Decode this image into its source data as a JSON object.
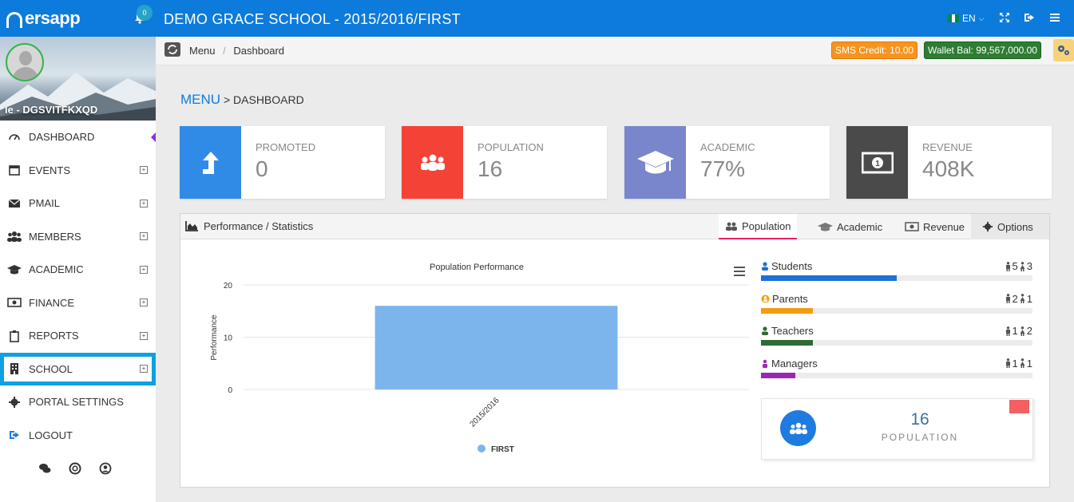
{
  "topbar": {
    "brand": "ersapp",
    "notification_count": "0",
    "title": "DEMO GRACE SCHOOL - 2015/2016/FIRST",
    "language": "EN"
  },
  "sidebar": {
    "profile_name": "le - DGSVITFKXQD",
    "items": [
      {
        "label": "DASHBOARD",
        "icon": "dashboard-icon"
      },
      {
        "label": "EVENTS",
        "icon": "calendar-icon"
      },
      {
        "label": "PMAIL",
        "icon": "mail-icon"
      },
      {
        "label": "MEMBERS",
        "icon": "users-icon"
      },
      {
        "label": "ACADEMIC",
        "icon": "graduation-cap-icon"
      },
      {
        "label": "FINANCE",
        "icon": "money-icon"
      },
      {
        "label": "REPORTS",
        "icon": "clipboard-icon"
      },
      {
        "label": "SCHOOL",
        "icon": "building-icon"
      },
      {
        "label": "PORTAL SETTINGS",
        "icon": "gear-icon"
      },
      {
        "label": "LOGOUT",
        "icon": "logout-icon"
      }
    ]
  },
  "breadcrumb": {
    "root": "Menu",
    "current": "Dashboard"
  },
  "badges": {
    "sms_credit": "SMS Credit: 10.00",
    "wallet": "Wallet Bal: 99,567,000.00"
  },
  "page_heading": {
    "menu": "MENU",
    "separator": ">",
    "current": "DASHBOARD"
  },
  "stats": [
    {
      "label": "PROMOTED",
      "value": "0",
      "color": "#2f8be6",
      "icon": "level-up-icon"
    },
    {
      "label": "POPULATION",
      "value": "16",
      "color": "#f44336",
      "icon": "group-icon"
    },
    {
      "label": "ACADEMIC",
      "value": "77%",
      "color": "#7986cb",
      "icon": "graduation-cap-icon"
    },
    {
      "label": "REVENUE",
      "value": "408K",
      "color": "#4a4a4a",
      "icon": "money-bill-icon"
    }
  ],
  "panel": {
    "title": "Performance / Statistics",
    "tabs": [
      "Population",
      "Academic",
      "Revenue",
      "Options"
    ],
    "active_tab": "Population"
  },
  "chart_data": {
    "type": "bar",
    "title": "Population Performance",
    "ylabel": "Performance",
    "xlabel": "",
    "categories": [
      "2015/2016"
    ],
    "series": [
      {
        "name": "FIRST",
        "values": [
          16
        ]
      }
    ],
    "ylim": [
      0,
      20
    ],
    "yticks": [
      "0",
      "10",
      "20"
    ],
    "color": "#7cb5ec",
    "legend": "bottom",
    "grid": true
  },
  "population_breakdown": [
    {
      "name": "Students",
      "male": "5",
      "female": "3",
      "fraction": 0.5,
      "color": "#1e6fd9"
    },
    {
      "name": "Parents",
      "male": "2",
      "female": "1",
      "fraction": 0.19,
      "color": "#f39c12"
    },
    {
      "name": "Teachers",
      "male": "1",
      "female": "2",
      "fraction": 0.19,
      "color": "#2e6b34"
    },
    {
      "name": "Managers",
      "male": "1",
      "female": "1",
      "fraction": 0.125,
      "color": "#9c27b0"
    }
  ],
  "population_card": {
    "value": "16",
    "label": "POPULATION"
  }
}
